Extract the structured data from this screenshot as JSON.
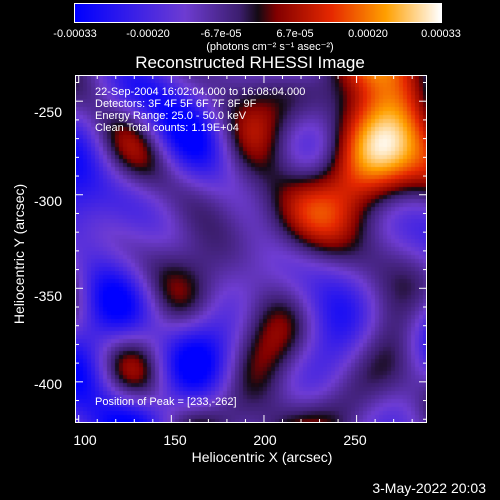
{
  "colorbar": {
    "tick_labels": [
      "-0.00033",
      "-0.00020",
      "-6.7e-05",
      "6.7e-05",
      "0.00020",
      "0.00033"
    ],
    "unit_text": "(photons cm⁻² s⁻¹ asec⁻²)"
  },
  "plot": {
    "title": "Reconstructed RHESSI Image",
    "x_label": "Heliocentric X (arcsec)",
    "y_label": "Heliocentric Y (arcsec)",
    "x_ticks": [
      "100",
      "150",
      "200",
      "250"
    ],
    "y_ticks": [
      "-250",
      "-300",
      "-350",
      "-400"
    ],
    "x_range": [
      98,
      288
    ],
    "y_range": [
      -422,
      -236
    ],
    "info_lines": [
      "22-Sep-2004 16:02:04.000 to 16:08:04.000",
      "Detectors: 3F 4F 5F 6F 7F 8F 9F",
      "Energy Range: 25.0 - 50.0 keV",
      "Clean     Total counts: 1.19E+04"
    ],
    "peak_text": "Position of Peak = [233,-262]"
  },
  "footer": {
    "timestamp": "3-May-2022 20:03"
  }
}
